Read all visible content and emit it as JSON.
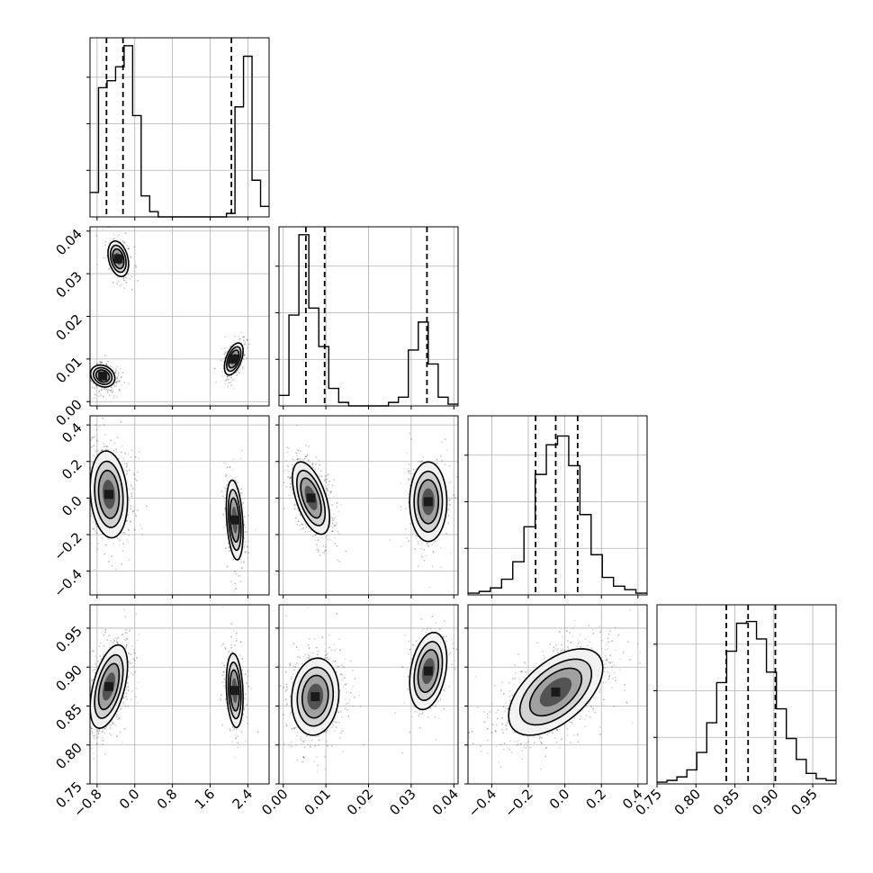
{
  "chart_data": {
    "type": "corner",
    "n_params": 4,
    "params": [
      {
        "index": 0,
        "xlim": [
          -0.95,
          2.85
        ],
        "ticks": [
          -0.8,
          0.0,
          0.8,
          1.6,
          2.4
        ],
        "tick_labels": [
          "−0.8",
          "0.0",
          "0.8",
          "1.6",
          "2.4"
        ]
      },
      {
        "index": 1,
        "xlim": [
          -0.001,
          0.041
        ],
        "ticks": [
          0.0,
          0.01,
          0.02,
          0.03,
          0.04
        ],
        "tick_labels": [
          "0.00",
          "0.01",
          "0.02",
          "0.03",
          "0.04"
        ]
      },
      {
        "index": 2,
        "xlim": [
          -0.53,
          0.45
        ],
        "ticks": [
          -0.4,
          -0.2,
          0.0,
          0.2,
          0.4
        ],
        "tick_labels": [
          "−0.4",
          "−0.2",
          "0.0",
          "0.2",
          "0.4"
        ]
      },
      {
        "index": 3,
        "xlim": [
          0.75,
          0.98
        ],
        "ticks": [
          0.75,
          0.8,
          0.85,
          0.9,
          0.95
        ],
        "tick_labels": [
          "0.75",
          "0.80",
          "0.85",
          "0.90",
          "0.95"
        ]
      }
    ],
    "histograms": [
      {
        "param": 0,
        "range": [
          -0.95,
          2.85
        ],
        "counts": [
          0.14,
          0.74,
          0.78,
          0.86,
          0.98,
          0.58,
          0.12,
          0.03,
          0.0,
          0,
          0,
          0,
          0,
          0,
          0,
          0,
          0.02,
          0.63,
          0.92,
          0.21,
          0.06
        ],
        "quantiles": [
          -0.6,
          -0.25,
          2.05
        ]
      },
      {
        "param": 1,
        "range": [
          -0.001,
          0.041
        ],
        "counts": [
          0.06,
          0.52,
          0.98,
          0.56,
          0.34,
          0.1,
          0.02,
          0,
          0,
          0,
          0,
          0.02,
          0.05,
          0.32,
          0.48,
          0.24,
          0.05,
          0.01
        ],
        "quantiles": [
          0.0053,
          0.0097,
          0.0337
        ]
      },
      {
        "param": 2,
        "range": [
          -0.53,
          0.45
        ],
        "counts": [
          0.01,
          0.02,
          0.04,
          0.09,
          0.19,
          0.39,
          0.69,
          0.86,
          0.91,
          0.74,
          0.46,
          0.23,
          0.1,
          0.05,
          0.03,
          0.01
        ],
        "quantiles": [
          -0.16,
          -0.05,
          0.07
        ]
      },
      {
        "param": 3,
        "range": [
          0.75,
          0.98
        ],
        "counts": [
          0.01,
          0.02,
          0.04,
          0.08,
          0.18,
          0.35,
          0.58,
          0.76,
          0.92,
          0.93,
          0.83,
          0.64,
          0.43,
          0.26,
          0.14,
          0.06,
          0.03,
          0.02
        ],
        "quantiles": [
          0.839,
          0.867,
          0.902
        ]
      }
    ],
    "joint": [
      {
        "x_param": 0,
        "y_param": 1,
        "modes": [
          {
            "cx": -0.35,
            "cy": 0.0335,
            "sx": 0.11,
            "sy": 0.0021,
            "rho": -0.3,
            "w": 0.24
          },
          {
            "cx": -0.68,
            "cy": 0.006,
            "sx": 0.13,
            "sy": 0.0013,
            "rho": -0.2,
            "w": 0.46
          },
          {
            "cx": 2.1,
            "cy": 0.01,
            "sx": 0.1,
            "sy": 0.0019,
            "rho": 0.5,
            "w": 0.3
          }
        ]
      },
      {
        "x_param": 0,
        "y_param": 2,
        "modes": [
          {
            "cx": -0.55,
            "cy": 0.02,
            "sx": 0.2,
            "sy": 0.12,
            "rho": -0.15,
            "w": 0.7
          },
          {
            "cx": 2.12,
            "cy": -0.12,
            "sx": 0.09,
            "sy": 0.11,
            "rho": -0.3,
            "w": 0.3
          }
        ]
      },
      {
        "x_param": 0,
        "y_param": 3,
        "modes": [
          {
            "cx": -0.55,
            "cy": 0.875,
            "sx": 0.2,
            "sy": 0.027,
            "rho": 0.5,
            "w": 0.7
          },
          {
            "cx": 2.12,
            "cy": 0.87,
            "sx": 0.09,
            "sy": 0.024,
            "rho": -0.2,
            "w": 0.3
          }
        ]
      },
      {
        "x_param": 1,
        "y_param": 2,
        "modes": [
          {
            "cx": 0.0065,
            "cy": 0.0,
            "sx": 0.0022,
            "sy": 0.1,
            "rho": -0.55,
            "w": 0.7
          },
          {
            "cx": 0.034,
            "cy": -0.02,
            "sx": 0.0022,
            "sy": 0.11,
            "rho": 0.0,
            "w": 0.3
          }
        ]
      },
      {
        "x_param": 1,
        "y_param": 3,
        "modes": [
          {
            "cx": 0.0075,
            "cy": 0.862,
            "sx": 0.0028,
            "sy": 0.025,
            "rho": 0.1,
            "w": 0.7
          },
          {
            "cx": 0.034,
            "cy": 0.895,
            "sx": 0.0022,
            "sy": 0.025,
            "rho": 0.3,
            "w": 0.3
          }
        ]
      },
      {
        "x_param": 2,
        "y_param": 3,
        "modes": [
          {
            "cx": -0.05,
            "cy": 0.868,
            "sx": 0.13,
            "sy": 0.028,
            "rho": 0.55,
            "w": 1.0
          }
        ]
      }
    ],
    "grid": true,
    "legend": "none"
  }
}
